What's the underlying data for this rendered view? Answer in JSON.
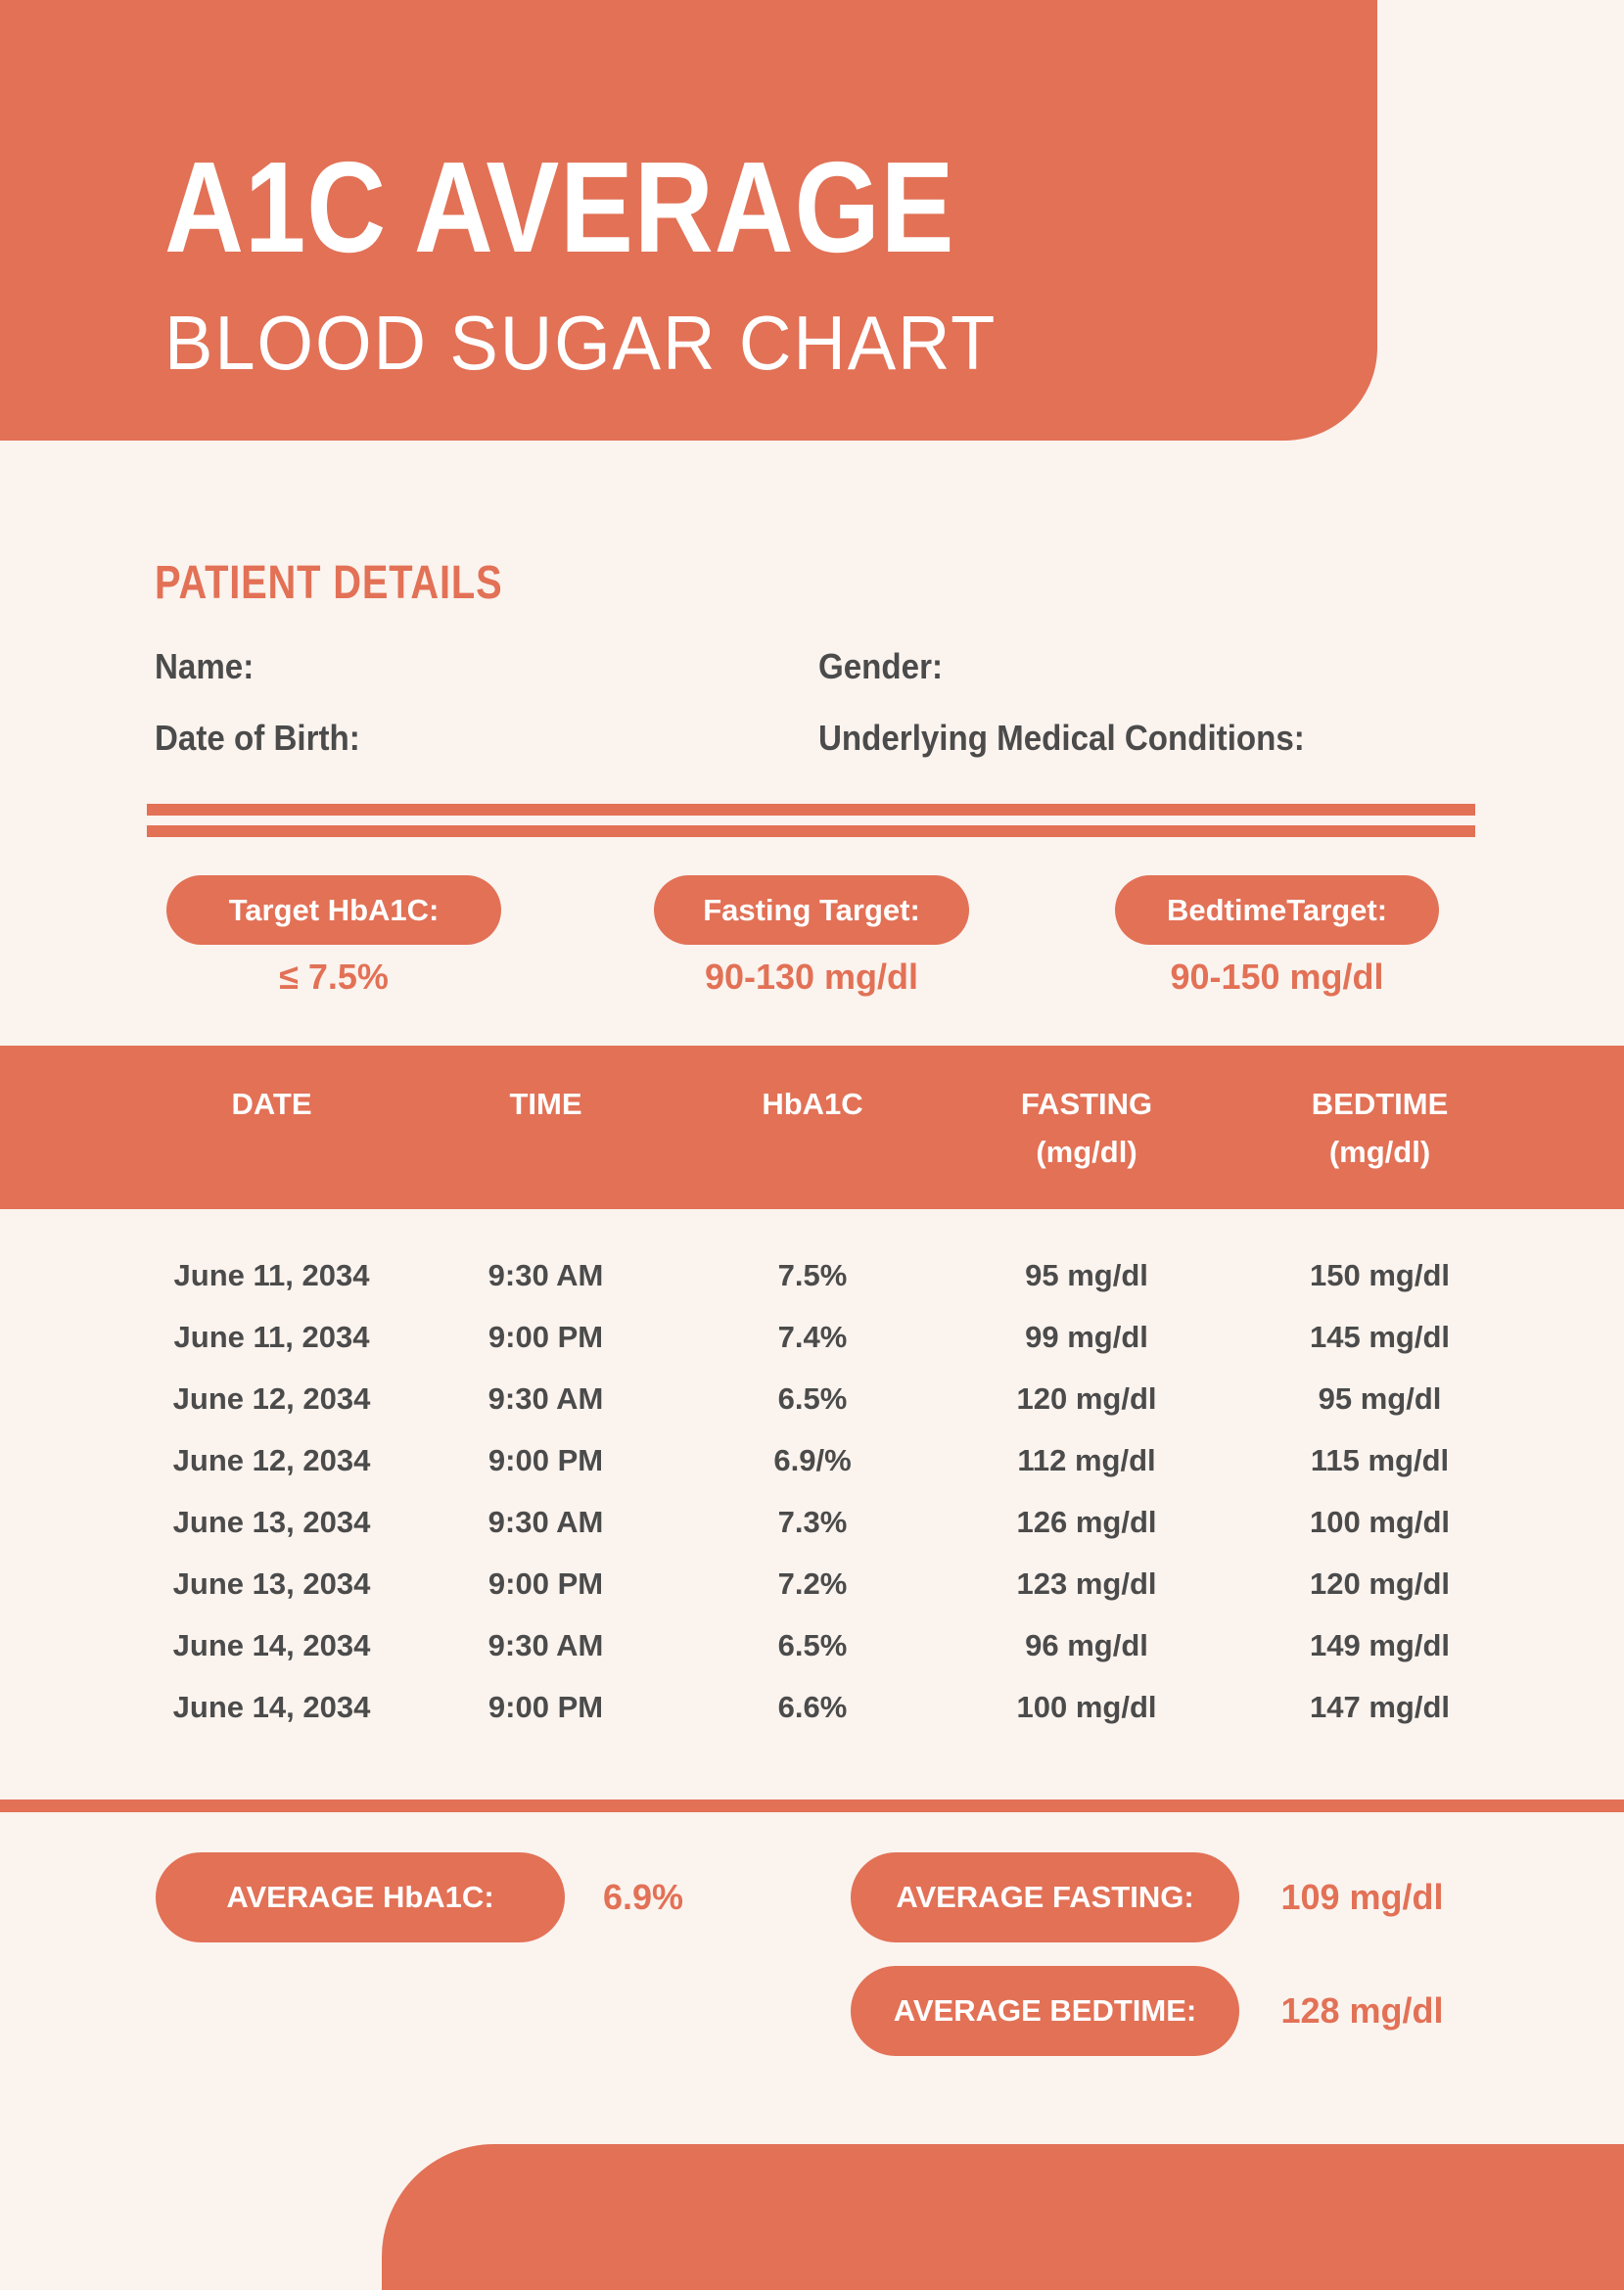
{
  "header": {
    "title": "A1C AVERAGE",
    "subtitle": "BLOOD SUGAR CHART"
  },
  "patient": {
    "heading": "PATIENT DETAILS",
    "fields": [
      {
        "label": "Name:",
        "value": ""
      },
      {
        "label": "Gender:",
        "value": ""
      },
      {
        "label": "Date of Birth:",
        "value": ""
      },
      {
        "label": "Underlying Medical Conditions:",
        "value": ""
      }
    ]
  },
  "targets": [
    {
      "label": "Target HbA1C:",
      "value": "≤ 7.5%"
    },
    {
      "label": "Fasting Target:",
      "value": "90-130 mg/dl"
    },
    {
      "label": "BedtimeTarget:",
      "value": "90-150 mg/dl"
    }
  ],
  "table": {
    "headers": [
      {
        "title": "DATE",
        "unit": ""
      },
      {
        "title": "TIME",
        "unit": ""
      },
      {
        "title": "HbA1C",
        "unit": ""
      },
      {
        "title": "FASTING",
        "unit": "(mg/dl)"
      },
      {
        "title": "BEDTIME",
        "unit": "(mg/dl)"
      }
    ],
    "rows": [
      {
        "cells": [
          "June 11, 2034",
          "9:30 AM",
          "7.5%",
          "95 mg/dl",
          "150 mg/dl"
        ]
      },
      {
        "cells": [
          "June 11, 2034",
          "9:00 PM",
          "7.4%",
          "99 mg/dl",
          "145 mg/dl"
        ]
      },
      {
        "cells": [
          "June 12, 2034",
          "9:30 AM",
          "6.5%",
          "120 mg/dl",
          "95 mg/dl"
        ]
      },
      {
        "cells": [
          "June 12, 2034",
          "9:00 PM",
          "6.9/%",
          "112 mg/dl",
          "115 mg/dl"
        ]
      },
      {
        "cells": [
          "June 13, 2034",
          "9:30 AM",
          "7.3%",
          "126 mg/dl",
          "100 mg/dl"
        ]
      },
      {
        "cells": [
          "June 13, 2034",
          "9:00 PM",
          "7.2%",
          "123 mg/dl",
          "120 mg/dl"
        ]
      },
      {
        "cells": [
          "June 14, 2034",
          "9:30 AM",
          "6.5%",
          "96 mg/dl",
          "149 mg/dl"
        ]
      },
      {
        "cells": [
          "June 14, 2034",
          "9:00 PM",
          "6.6%",
          "100 mg/dl",
          "147 mg/dl"
        ]
      }
    ]
  },
  "averages": [
    {
      "label": "AVERAGE HbA1C:",
      "value": "6.9%"
    },
    {
      "label": "AVERAGE FASTING:",
      "value": "109 mg/dl"
    },
    {
      "label": "AVERAGE BEDTIME:",
      "value": "128 mg/dl"
    }
  ],
  "colors": {
    "accent": "#E27156",
    "background": "#FBF3EE",
    "text_dark": "#4B4B4B",
    "text_light": "#FFFFFF"
  }
}
